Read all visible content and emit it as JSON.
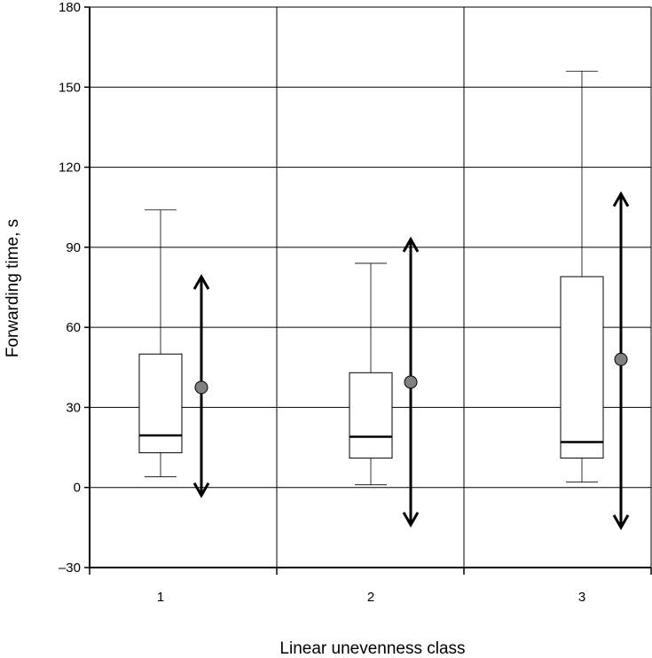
{
  "chart_data": {
    "type": "box",
    "title": "",
    "xlabel": "Linear unevenness class",
    "ylabel": "Forwarding time, s",
    "ylim": [
      -30,
      180
    ],
    "yticks": [
      -30,
      0,
      30,
      60,
      90,
      120,
      150,
      180
    ],
    "ytick_labels": [
      "–30",
      "0",
      "30",
      "60",
      "90",
      "120",
      "150",
      "180"
    ],
    "grid": true,
    "categories": [
      "1",
      "2",
      "3"
    ],
    "boxes": [
      {
        "category": "1",
        "whisker_low": 4,
        "q1": 13,
        "median": 19.5,
        "q3": 50,
        "whisker_high": 104,
        "mean": 37.5,
        "range_low": -3,
        "range_high": 79
      },
      {
        "category": "2",
        "whisker_low": 1,
        "q1": 11,
        "median": 19,
        "q3": 43,
        "whisker_high": 84,
        "mean": 39.5,
        "range_low": -14,
        "range_high": 93
      },
      {
        "category": "3",
        "whisker_low": 2,
        "q1": 11,
        "median": 17,
        "q3": 79,
        "whisker_high": 156,
        "mean": 48,
        "range_low": -15,
        "range_high": 110
      }
    ],
    "colors": {
      "box_fill": "#ffffff",
      "stroke": "#000000",
      "mean_marker": "#808080",
      "grid": "#000000"
    }
  }
}
